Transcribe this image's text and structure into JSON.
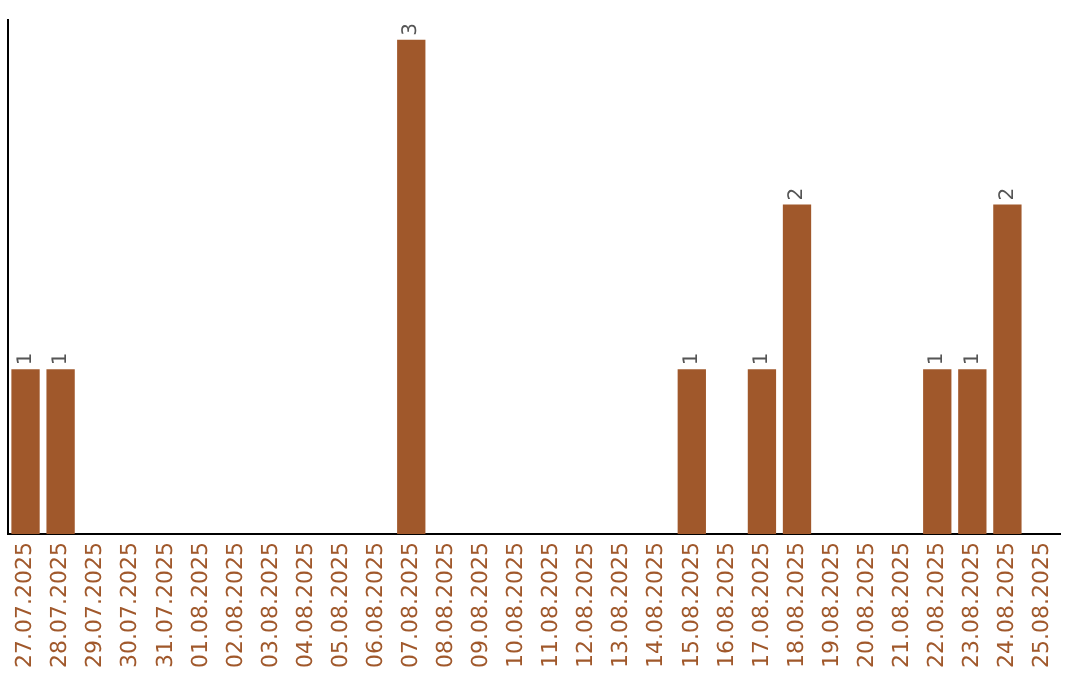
{
  "chart_data": {
    "type": "bar",
    "categories": [
      "27.07.2025",
      "28.07.2025",
      "29.07.2025",
      "30.07.2025",
      "31.07.2025",
      "01.08.2025",
      "02.08.2025",
      "03.08.2025",
      "04.08.2025",
      "05.08.2025",
      "06.08.2025",
      "07.08.2025",
      "08.08.2025",
      "09.08.2025",
      "10.08.2025",
      "11.08.2025",
      "12.08.2025",
      "13.08.2025",
      "14.08.2025",
      "15.08.2025",
      "16.08.2025",
      "17.08.2025",
      "18.08.2025",
      "19.08.2025",
      "20.08.2025",
      "21.08.2025",
      "22.08.2025",
      "23.08.2025",
      "24.08.2025",
      "25.08.2025"
    ],
    "values": [
      1,
      1,
      0,
      0,
      0,
      0,
      0,
      0,
      0,
      0,
      0,
      3,
      0,
      0,
      0,
      0,
      0,
      0,
      0,
      1,
      0,
      1,
      2,
      0,
      0,
      0,
      1,
      1,
      2,
      0
    ],
    "value_labels": [
      "1",
      "1",
      null,
      null,
      null,
      null,
      null,
      null,
      null,
      null,
      null,
      "3",
      null,
      null,
      null,
      null,
      null,
      null,
      null,
      "1",
      null,
      "1",
      "2",
      null,
      null,
      null,
      "1",
      "1",
      "2",
      null
    ],
    "color": "#a0582b",
    "ylim": [
      0,
      3.12
    ],
    "tick_labels": "x",
    "grid": false,
    "legend": false
  }
}
